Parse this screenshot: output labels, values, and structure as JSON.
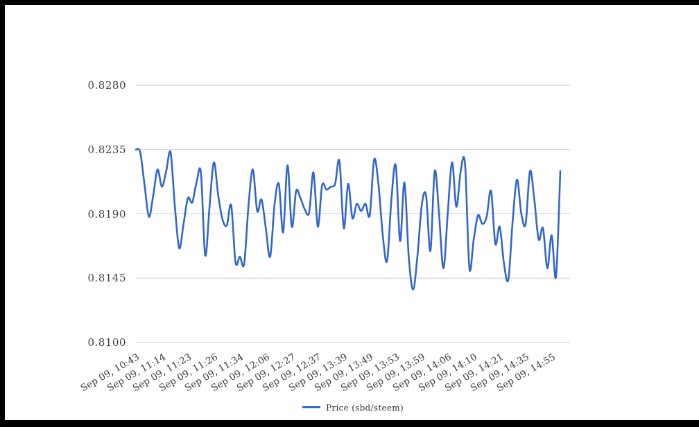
{
  "window": {
    "frame_color": "#000000",
    "background_color": "#ffffff"
  },
  "chart_data": {
    "type": "line",
    "title": "",
    "xlabel": "",
    "ylabel": "",
    "smooth": true,
    "grid": true,
    "grid_color": "#cccccc",
    "axis_label_color": "#404040",
    "ylim": [
      0.81,
      0.828
    ],
    "y_ticks": [
      0.828,
      0.8235,
      0.819,
      0.8145,
      0.81
    ],
    "y_tick_labels": [
      "0.8280",
      "0.8235",
      "0.8190",
      "0.8145",
      "0.8100"
    ],
    "x_tick_labels": [
      "Sep 09, 10:43",
      "Sep 09, 11:14",
      "Sep 09, 11:23",
      "Sep 09, 11:26",
      "Sep 09, 11:34",
      "Sep 09, 12:06",
      "Sep 09, 12:27",
      "Sep 09, 12:37",
      "Sep 09, 13:39",
      "Sep 09, 13:49",
      "Sep 09, 13:53",
      "Sep 09, 13:59",
      "Sep 09, 14:06",
      "Sep 09, 14:10",
      "Sep 09, 14:21",
      "Sep 09, 14:35",
      "Sep 09, 14:55"
    ],
    "points_per_labeled_tick": 6,
    "legend_position": "bottom",
    "series": [
      {
        "name": "Price (sbd/steem)",
        "color": "#3366cc",
        "values": [
          0.8235,
          0.8233,
          0.821,
          0.8188,
          0.8203,
          0.8221,
          0.8209,
          0.822,
          0.8233,
          0.8195,
          0.8166,
          0.8183,
          0.8201,
          0.8198,
          0.8212,
          0.8219,
          0.8161,
          0.8195,
          0.8226,
          0.8203,
          0.8186,
          0.8182,
          0.8196,
          0.8156,
          0.816,
          0.8155,
          0.8196,
          0.8221,
          0.8192,
          0.82,
          0.818,
          0.816,
          0.8196,
          0.8211,
          0.8177,
          0.8224,
          0.8181,
          0.8206,
          0.8201,
          0.8193,
          0.8191,
          0.8219,
          0.8181,
          0.821,
          0.8207,
          0.8209,
          0.8211,
          0.8227,
          0.818,
          0.8211,
          0.8187,
          0.8197,
          0.8192,
          0.8197,
          0.8189,
          0.8228,
          0.8211,
          0.8175,
          0.8157,
          0.82,
          0.8224,
          0.8171,
          0.8212,
          0.816,
          0.8137,
          0.816,
          0.8196,
          0.8203,
          0.8164,
          0.822,
          0.819,
          0.8152,
          0.819,
          0.8226,
          0.8195,
          0.822,
          0.8225,
          0.8152,
          0.8172,
          0.8189,
          0.8183,
          0.8188,
          0.8206,
          0.8169,
          0.8181,
          0.8155,
          0.8144,
          0.8185,
          0.8214,
          0.819,
          0.8183,
          0.822,
          0.82,
          0.8172,
          0.818,
          0.8152,
          0.8175,
          0.8146,
          0.822
        ]
      }
    ]
  },
  "legend": {
    "label": "Price (sbd/steem)",
    "swatch_color": "#3366cc"
  }
}
